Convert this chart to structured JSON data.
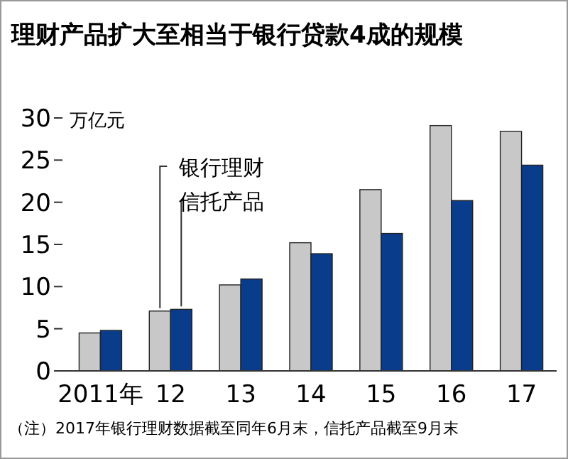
{
  "chart_data": {
    "type": "bar",
    "title": "理财产品扩大至相当于银行贷款4成的规模",
    "ylabel": "万亿元",
    "categories": [
      "2011年",
      "12",
      "13",
      "14",
      "15",
      "16",
      "17"
    ],
    "series": [
      {
        "name": "银行理财",
        "color": "#c8c8c8",
        "values": [
          4.5,
          7.1,
          10.2,
          15.2,
          21.5,
          29.1,
          28.4
        ]
      },
      {
        "name": "信托产品",
        "color": "#0a3c8c",
        "values": [
          4.8,
          7.3,
          10.9,
          13.9,
          16.3,
          20.2,
          24.4
        ]
      }
    ],
    "ylim": [
      0,
      30
    ],
    "yticks": [
      0,
      5,
      10,
      15,
      20,
      25,
      30
    ],
    "grid": false,
    "annotations": [
      "（注）2017年银行理财数据截至同年6月末，信托产品截至9月末"
    ]
  }
}
